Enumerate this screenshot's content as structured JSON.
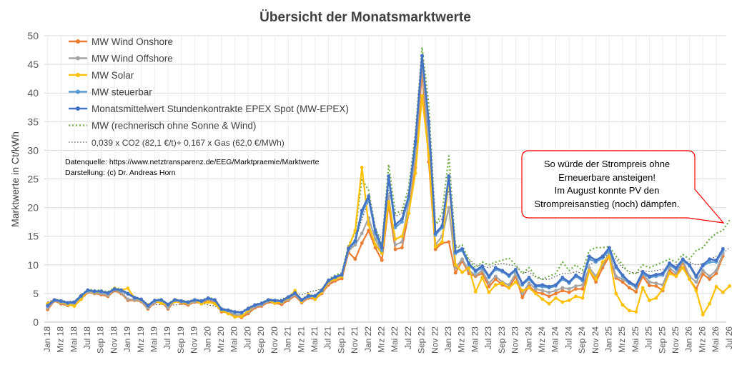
{
  "chart_data": {
    "type": "line",
    "title": "Übersicht der Monatsmarktwerte",
    "ylabel": "Marktwerte in Ct/kWh",
    "xlabel": "",
    "ylim": [
      0,
      50
    ],
    "yticks": [
      0,
      5,
      10,
      15,
      20,
      25,
      30,
      35,
      40,
      45,
      50
    ],
    "xtick_labels": [
      "Jan 18",
      "Mrz 18",
      "Mai 18",
      "Jul 18",
      "Sep 18",
      "Nov 18",
      "Jan 19",
      "Mrz 19",
      "Mai 19",
      "Jul 19",
      "Sep 19",
      "Nov 19",
      "Jan 20",
      "Mrz 20",
      "Mai 20",
      "Jul 20",
      "Sep 20",
      "Nov 20",
      "Jan 21",
      "Mrz 21",
      "Mai 21",
      "Jul 21",
      "Sep 21",
      "Nov 21",
      "Jan 22",
      "Mrz 22",
      "Mai 22",
      "Jul 22",
      "Sep 22",
      "Nov 22",
      "Jan 23",
      "Mrz 23",
      "Mai 23",
      "Jul 23",
      "Sep 23",
      "Nov 23",
      "Jan 24",
      "Mrz 24",
      "Mai 24",
      "Jul 24",
      "Sep 24",
      "Nov 24",
      "Jan 25",
      "Mrz 25",
      "Mai 25",
      "Jul 25",
      "Sep 25",
      "Nov 25",
      "Jan 26",
      "Mrz 26",
      "Mai 26",
      "Jul 26"
    ],
    "x_start": "2018-01",
    "grid": true,
    "legend_position": "top-left",
    "series": [
      {
        "name": "MW Wind Onshore",
        "color": "#ED7D31",
        "style": "solid-marker",
        "values": [
          2.2,
          3.7,
          3.2,
          2.9,
          3.0,
          4.0,
          5.2,
          5.0,
          4.8,
          4.5,
          5.5,
          5.0,
          3.8,
          3.8,
          3.6,
          2.3,
          3.4,
          3.6,
          2.3,
          3.7,
          3.3,
          3.0,
          3.5,
          3.3,
          3.8,
          3.5,
          1.8,
          1.7,
          1.1,
          0.8,
          1.5,
          2.5,
          2.8,
          3.5,
          3.3,
          3.1,
          3.8,
          4.6,
          3.4,
          4.2,
          4.0,
          5.0,
          6.5,
          7.2,
          7.6,
          12.2,
          11.0,
          13.8,
          16.0,
          13.0,
          10.8,
          20.5,
          12.7,
          13.0,
          19.0,
          27.0,
          44.0,
          28.0,
          12.7,
          13.8,
          14.0,
          8.6,
          10.7,
          8.5,
          8.0,
          8.5,
          6.2,
          7.5,
          6.5,
          6.0,
          8.0,
          4.3,
          6.3,
          5.2,
          5.0,
          4.5,
          5.0,
          5.5,
          5.2,
          5.8,
          5.8,
          9.0,
          7.0,
          9.5,
          11.5,
          7.7,
          7.0,
          6.0,
          5.3,
          8.0,
          6.4,
          6.3,
          5.5,
          9.0,
          8.0,
          10.5,
          7.5,
          5.8,
          8.4,
          7.5,
          8.5,
          11.5
        ]
      },
      {
        "name": "MW Wind Offshore",
        "color": "#A5A5A5",
        "style": "solid-marker",
        "values": [
          2.5,
          3.8,
          3.4,
          3.0,
          3.2,
          4.2,
          5.3,
          5.1,
          5.0,
          4.7,
          5.7,
          5.2,
          4.0,
          3.9,
          3.7,
          2.5,
          3.5,
          3.7,
          2.5,
          3.8,
          3.5,
          3.2,
          3.6,
          3.5,
          4.0,
          3.6,
          2.0,
          1.8,
          1.3,
          1.2,
          1.8,
          2.7,
          3.0,
          3.7,
          3.5,
          3.4,
          4.0,
          4.8,
          3.6,
          4.4,
          4.2,
          5.2,
          6.8,
          7.5,
          8.0,
          12.5,
          13.5,
          15.5,
          18.2,
          14.5,
          12.0,
          22.0,
          13.5,
          14.0,
          21.0,
          29.0,
          45.5,
          30.5,
          13.5,
          15.0,
          20.0,
          9.5,
          11.0,
          9.0,
          8.2,
          9.0,
          6.8,
          8.0,
          7.0,
          6.5,
          8.5,
          5.0,
          6.8,
          5.8,
          5.5,
          5.2,
          5.5,
          6.0,
          5.8,
          6.3,
          6.5,
          9.5,
          8.0,
          10.0,
          12.0,
          8.0,
          7.5,
          6.8,
          6.0,
          8.5,
          7.0,
          6.8,
          6.5,
          9.5,
          8.5,
          10.8,
          8.0,
          7.0,
          9.0,
          8.0,
          9.0,
          12.0
        ]
      },
      {
        "name": "MW Solar",
        "color": "#FFC000",
        "style": "solid-marker",
        "values": [
          3.2,
          3.9,
          3.5,
          3.1,
          2.8,
          4.0,
          5.5,
          5.2,
          5.3,
          5.0,
          5.9,
          5.6,
          5.9,
          4.2,
          3.8,
          3.0,
          3.7,
          3.3,
          3.0,
          3.6,
          3.5,
          3.3,
          3.8,
          3.2,
          3.5,
          3.2,
          2.0,
          1.5,
          0.9,
          1.0,
          2.0,
          3.0,
          3.2,
          3.8,
          3.3,
          3.5,
          4.2,
          5.5,
          3.6,
          4.8,
          4.0,
          5.2,
          7.0,
          7.5,
          8.0,
          13.0,
          16.0,
          27.0,
          17.0,
          13.5,
          12.0,
          21.0,
          14.5,
          15.0,
          19.0,
          26.0,
          39.5,
          29.0,
          13.2,
          14.0,
          25.0,
          10.0,
          8.7,
          9.5,
          5.3,
          7.8,
          5.2,
          6.5,
          6.8,
          6.0,
          7.0,
          5.5,
          6.0,
          5.0,
          4.0,
          3.2,
          4.2,
          3.5,
          3.8,
          4.5,
          4.2,
          9.0,
          7.5,
          10.5,
          11.5,
          5.0,
          3.0,
          2.0,
          1.8,
          6.0,
          3.8,
          4.2,
          5.8,
          8.5,
          8.0,
          9.5,
          7.5,
          5.5,
          1.3,
          3.2,
          6.2,
          5.2,
          6.3
        ]
      },
      {
        "name": "MW steuerbar",
        "color": "#5B9BD5",
        "style": "solid-marker",
        "values": [
          2.8,
          3.8,
          3.6,
          3.3,
          3.4,
          4.5,
          5.5,
          5.3,
          5.3,
          5.0,
          5.7,
          5.5,
          4.9,
          4.2,
          3.9,
          2.8,
          3.7,
          3.8,
          3.0,
          3.8,
          3.6,
          3.4,
          3.8,
          3.6,
          4.1,
          3.8,
          2.2,
          2.0,
          1.7,
          1.6,
          2.3,
          2.9,
          3.2,
          3.8,
          3.7,
          3.6,
          4.3,
          5.0,
          3.8,
          4.5,
          4.5,
          5.5,
          7.2,
          7.8,
          8.2,
          12.8,
          14.0,
          19.0,
          21.5,
          15.5,
          12.5,
          25.0,
          16.5,
          17.5,
          21.5,
          31.0,
          46.5,
          34.5,
          15.2,
          16.5,
          25.2,
          12.0,
          12.5,
          10.0,
          8.8,
          9.5,
          7.8,
          9.2,
          8.8,
          8.0,
          9.0,
          6.5,
          7.5,
          6.2,
          6.2,
          6.0,
          6.3,
          7.5,
          6.8,
          8.0,
          7.2,
          11.0,
          10.5,
          11.2,
          12.5,
          9.5,
          8.0,
          6.8,
          6.2,
          8.5,
          7.8,
          8.0,
          8.2,
          10.0,
          9.2,
          10.8,
          9.8,
          7.8,
          9.8,
          10.5,
          10.5,
          12.5
        ]
      },
      {
        "name": "Monatsmittelwert Stundenkontrakte EPEX Spot (MW-EPEX)",
        "color": "#4472C4",
        "style": "solid-marker",
        "values": [
          2.9,
          3.9,
          3.7,
          3.4,
          3.5,
          4.6,
          5.6,
          5.4,
          5.4,
          5.1,
          5.8,
          5.6,
          5.0,
          4.3,
          4.0,
          2.9,
          3.8,
          3.9,
          3.1,
          3.9,
          3.7,
          3.5,
          3.9,
          3.7,
          4.2,
          3.9,
          2.3,
          2.1,
          1.8,
          1.7,
          2.4,
          3.0,
          3.3,
          3.9,
          3.8,
          3.7,
          4.4,
          5.1,
          3.9,
          4.6,
          4.6,
          5.6,
          7.3,
          7.9,
          8.3,
          12.9,
          14.2,
          19.5,
          22.0,
          16.0,
          13.0,
          25.5,
          17.0,
          18.0,
          22.0,
          31.5,
          46.5,
          35.0,
          15.5,
          16.8,
          25.5,
          12.3,
          12.8,
          10.2,
          9.0,
          9.8,
          8.0,
          9.5,
          9.0,
          8.2,
          9.2,
          6.7,
          7.8,
          6.4,
          6.5,
          6.2,
          6.5,
          7.8,
          7.0,
          8.2,
          7.5,
          11.5,
          10.8,
          11.5,
          13.0,
          9.8,
          8.2,
          7.0,
          6.4,
          8.8,
          8.0,
          8.3,
          8.5,
          10.3,
          9.5,
          11.0,
          10.0,
          8.0,
          10.0,
          11.0,
          10.8,
          12.8
        ]
      },
      {
        "name": "MW (rechnerisch ohne Sonne & Wind)",
        "color": "#70AD47",
        "style": "dotted",
        "values": [
          3.0,
          4.0,
          3.8,
          3.5,
          3.6,
          4.8,
          5.7,
          5.6,
          5.6,
          5.3,
          6.0,
          5.8,
          5.0,
          4.4,
          4.1,
          3.0,
          3.9,
          4.0,
          3.2,
          4.0,
          3.8,
          3.6,
          4.0,
          3.8,
          4.3,
          4.0,
          2.4,
          2.2,
          1.9,
          1.8,
          2.5,
          3.1,
          3.4,
          4.0,
          3.9,
          3.8,
          4.5,
          5.2,
          4.0,
          4.7,
          4.7,
          5.7,
          7.5,
          8.2,
          8.6,
          13.5,
          15.5,
          25.0,
          23.0,
          16.5,
          13.5,
          27.5,
          19.0,
          19.5,
          23.5,
          33.0,
          48.0,
          38.0,
          17.0,
          19.0,
          29.0,
          13.0,
          13.5,
          10.8,
          9.5,
          10.5,
          10.0,
          10.5,
          10.8,
          11.2,
          10.0,
          8.5,
          9.5,
          8.0,
          7.5,
          8.0,
          8.5,
          10.5,
          9.0,
          10.0,
          9.0,
          12.5,
          13.0,
          13.0,
          13.2,
          11.5,
          10.0,
          8.5,
          8.5,
          10.0,
          9.5,
          10.0,
          10.5,
          11.0,
          10.5,
          11.8,
          11.0,
          12.5,
          13.0,
          14.5,
          15.5,
          16.0,
          17.8
        ]
      },
      {
        "name": "0,039 x CO2 (82,1 €/t)+ 0,167 x Gas (62,0 €/MWh)",
        "color": "#404040",
        "style": "dotted-thin",
        "values": [
          3.5,
          4.0,
          3.8,
          3.6,
          3.7,
          4.5,
          5.0,
          5.2,
          5.3,
          5.0,
          5.3,
          5.2,
          4.8,
          4.2,
          3.9,
          3.2,
          3.0,
          3.1,
          3.0,
          3.0,
          3.1,
          3.2,
          3.5,
          3.3,
          3.0,
          2.8,
          2.0,
          1.8,
          1.7,
          1.8,
          2.2,
          2.6,
          3.0,
          3.5,
          3.8,
          4.0,
          4.5,
          5.0,
          4.8,
          5.2,
          5.5,
          5.8,
          6.5,
          7.5,
          8.5,
          12.0,
          14.0,
          18.0,
          21.0,
          16.0,
          14.5,
          23.0,
          18.5,
          19.0,
          22.0,
          30.0,
          44.0,
          33.0,
          17.0,
          18.0,
          23.0,
          13.5,
          12.5,
          11.0,
          10.0,
          9.8,
          9.5,
          10.0,
          10.3,
          10.0,
          9.8,
          8.5,
          8.8,
          7.8,
          7.5,
          7.5,
          8.0,
          8.5,
          8.5,
          8.8,
          8.5,
          10.0,
          10.5,
          11.0,
          12.0,
          11.0,
          9.5,
          8.8,
          8.5,
          9.0,
          8.8,
          9.0,
          9.2,
          9.8,
          10.0,
          10.5,
          10.5,
          10.0,
          10.2,
          11.0,
          11.5,
          12.0,
          13.0
        ]
      }
    ],
    "annotations": {
      "source_line1": "Datenquelle: https://www.netztransparenz.de/EEG/Marktpraemie/Marktwerte",
      "source_line2": "Darstellung: (c) Dr. Andreas Horn",
      "callout_lines": [
        "So würde der Strompreis ohne",
        "Erneuerbare ansteigen!",
        "Im August konnte PV den",
        "Strompreisanstieg (noch) dämpfen."
      ],
      "callout_color": "#FF0000"
    }
  }
}
